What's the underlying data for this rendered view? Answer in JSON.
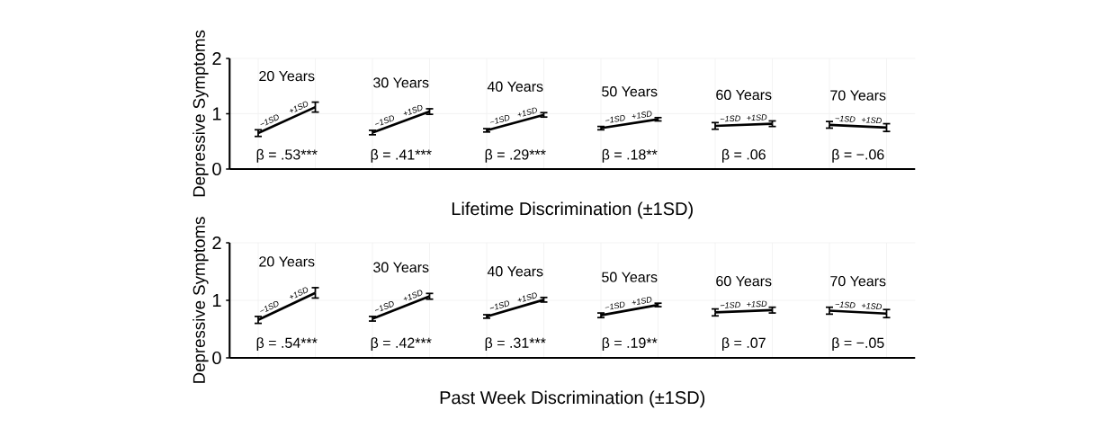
{
  "chart_data": [
    {
      "type": "line",
      "xlabel": "Lifetime Discrimination (±1SD)",
      "ylabel": "Depressive Symptoms",
      "categories": [
        null,
        null,
        null,
        null,
        null,
        null,
        null,
        null,
        null,
        null,
        null,
        null
      ],
      "ylim": [
        0,
        2
      ],
      "yticks": [
        0,
        1,
        2
      ],
      "grid": true,
      "tick_labels": "y",
      "series": [
        {
          "name": "20 Years",
          "color": "#000000",
          "values": [
            0.65,
            1.12,
            null,
            null,
            null,
            null,
            null,
            null,
            null,
            null,
            null,
            null
          ],
          "errors": [
            0.06,
            0.09,
            null,
            null,
            null,
            null,
            null,
            null,
            null,
            null,
            null,
            null
          ]
        },
        {
          "name": "30 Years",
          "color": "#000000",
          "values": [
            null,
            null,
            0.66,
            1.04,
            null,
            null,
            null,
            null,
            null,
            null,
            null,
            null
          ],
          "errors": [
            null,
            null,
            0.04,
            0.05,
            null,
            null,
            null,
            null,
            null,
            null,
            null,
            null
          ]
        },
        {
          "name": "40 Years",
          "color": "#000000",
          "values": [
            null,
            null,
            null,
            null,
            0.7,
            0.98,
            null,
            null,
            null,
            null,
            null,
            null
          ],
          "errors": [
            null,
            null,
            null,
            null,
            0.03,
            0.04,
            null,
            null,
            null,
            null,
            null,
            null
          ]
        },
        {
          "name": "50 Years",
          "color": "#000000",
          "values": [
            null,
            null,
            null,
            null,
            null,
            null,
            0.74,
            0.9,
            null,
            null,
            null,
            null
          ],
          "errors": [
            null,
            null,
            null,
            null,
            null,
            null,
            0.03,
            0.03,
            null,
            null,
            null,
            null
          ]
        },
        {
          "name": "60 Years",
          "color": "#000000",
          "values": [
            null,
            null,
            null,
            null,
            null,
            null,
            null,
            null,
            0.78,
            0.82,
            null,
            null
          ],
          "errors": [
            null,
            null,
            null,
            null,
            null,
            null,
            null,
            null,
            0.06,
            0.05,
            null,
            null
          ]
        },
        {
          "name": "70 Years",
          "color": "#000000",
          "values": [
            null,
            null,
            null,
            null,
            null,
            null,
            null,
            null,
            null,
            null,
            0.8,
            0.75
          ],
          "errors": [
            null,
            null,
            null,
            null,
            null,
            null,
            null,
            null,
            null,
            null,
            0.06,
            0.07
          ]
        }
      ],
      "annotations": [
        "β = .53***",
        "−1SD",
        "+1SD",
        "β = .41***",
        "−1SD",
        "+1SD",
        "β = .29***",
        "−1SD",
        "+1SD",
        "β = .18**",
        "−1SD",
        "+1SD",
        "β = .06",
        "−1SD",
        "+1SD",
        "β = −.06",
        "−1SD",
        "+1SD"
      ]
    },
    {
      "type": "line",
      "xlabel": "Past Week Discrimination (±1SD)",
      "ylabel": "Depressive Symptoms",
      "categories": [
        null,
        null,
        null,
        null,
        null,
        null,
        null,
        null,
        null,
        null,
        null,
        null
      ],
      "ylim": [
        0,
        2
      ],
      "yticks": [
        0,
        1,
        2
      ],
      "grid": true,
      "tick_labels": "y",
      "series": [
        {
          "name": "20 Years",
          "color": "#000000",
          "values": [
            0.66,
            1.13,
            null,
            null,
            null,
            null,
            null,
            null,
            null,
            null,
            null,
            null
          ],
          "errors": [
            0.06,
            0.09,
            null,
            null,
            null,
            null,
            null,
            null,
            null,
            null,
            null,
            null
          ]
        },
        {
          "name": "30 Years",
          "color": "#000000",
          "values": [
            null,
            null,
            0.68,
            1.07,
            null,
            null,
            null,
            null,
            null,
            null,
            null,
            null
          ],
          "errors": [
            null,
            null,
            0.04,
            0.05,
            null,
            null,
            null,
            null,
            null,
            null,
            null,
            null
          ]
        },
        {
          "name": "40 Years",
          "color": "#000000",
          "values": [
            null,
            null,
            null,
            null,
            0.72,
            1.01,
            null,
            null,
            null,
            null,
            null,
            null
          ],
          "errors": [
            null,
            null,
            null,
            null,
            0.03,
            0.04,
            null,
            null,
            null,
            null,
            null,
            null
          ]
        },
        {
          "name": "50 Years",
          "color": "#000000",
          "values": [
            null,
            null,
            null,
            null,
            null,
            null,
            0.74,
            0.92,
            null,
            null,
            null,
            null
          ],
          "errors": [
            null,
            null,
            null,
            null,
            null,
            null,
            0.04,
            0.03,
            null,
            null,
            null,
            null
          ]
        },
        {
          "name": "60 Years",
          "color": "#000000",
          "values": [
            null,
            null,
            null,
            null,
            null,
            null,
            null,
            null,
            0.79,
            0.83,
            null,
            null
          ],
          "errors": [
            null,
            null,
            null,
            null,
            null,
            null,
            null,
            null,
            0.06,
            0.05,
            null,
            null
          ]
        },
        {
          "name": "70 Years",
          "color": "#000000",
          "values": [
            null,
            null,
            null,
            null,
            null,
            null,
            null,
            null,
            null,
            null,
            0.82,
            0.77
          ],
          "errors": [
            null,
            null,
            null,
            null,
            null,
            null,
            null,
            null,
            null,
            null,
            0.06,
            0.07
          ]
        }
      ],
      "annotations": [
        "β = .54***",
        "−1SD",
        "+1SD",
        "β = .42***",
        "−1SD",
        "+1SD",
        "β = .31***",
        "−1SD",
        "+1SD",
        "β = .19**",
        "−1SD",
        "+1SD",
        "β = .07",
        "−1SD",
        "+1SD",
        "β = −.05",
        "−1SD",
        "+1SD"
      ]
    }
  ]
}
